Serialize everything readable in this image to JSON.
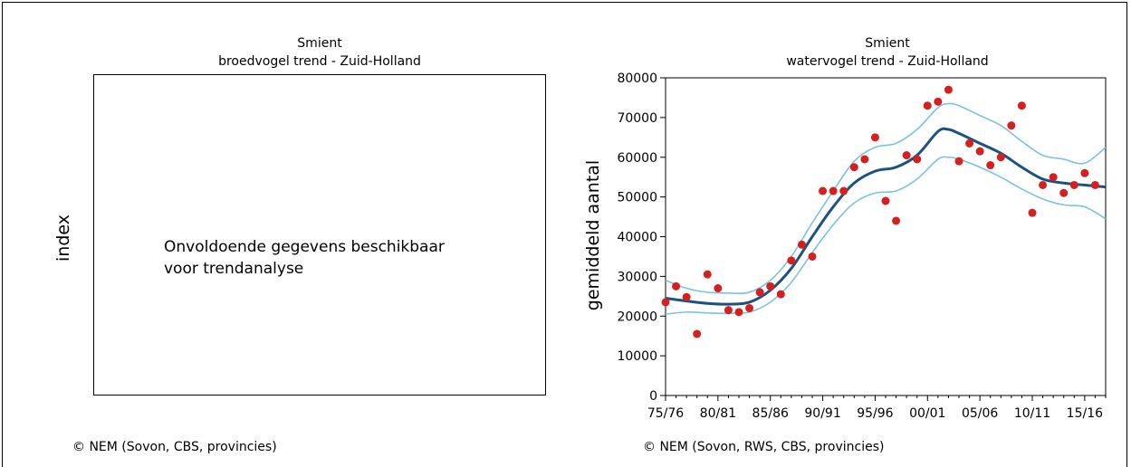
{
  "left_panel": {
    "title": "Smient",
    "subtitle": "broedvogel trend - Zuid-Holland",
    "ylabel": "index",
    "message_line1": "Onvoldoende gegevens beschikbaar",
    "message_line2": "voor trendanalyse",
    "credit": "© NEM (Sovon, CBS, provincies)"
  },
  "right_panel": {
    "credit": "© NEM (Sovon, RWS, CBS, provincies)"
  },
  "chart_data": {
    "type": "scatter",
    "title": "Smient",
    "subtitle": "watervogel trend - Zuid-Holland",
    "ylabel": "gemiddeld aantal",
    "xlabel": "",
    "ylim": [
      0,
      80000
    ],
    "yticks": [
      0,
      10000,
      20000,
      30000,
      40000,
      50000,
      60000,
      70000,
      80000
    ],
    "xlim": [
      1975,
      2017
    ],
    "xticks": [
      {
        "x": 1975,
        "label": "75/76"
      },
      {
        "x": 1980,
        "label": "80/81"
      },
      {
        "x": 1985,
        "label": "85/86"
      },
      {
        "x": 1990,
        "label": "90/91"
      },
      {
        "x": 1995,
        "label": "95/96"
      },
      {
        "x": 2000,
        "label": "00/01"
      },
      {
        "x": 2005,
        "label": "05/06"
      },
      {
        "x": 2010,
        "label": "10/11"
      },
      {
        "x": 2015,
        "label": "15/16"
      }
    ],
    "points": {
      "x": [
        1975,
        1976,
        1977,
        1978,
        1979,
        1980,
        1981,
        1982,
        1983,
        1984,
        1985,
        1986,
        1987,
        1988,
        1989,
        1990,
        1991,
        1992,
        1993,
        1994,
        1995,
        1996,
        1997,
        1998,
        1999,
        2000,
        2001,
        2002,
        2003,
        2004,
        2005,
        2006,
        2007,
        2008,
        2009,
        2010,
        2011,
        2012,
        2013,
        2014,
        2015,
        2016
      ],
      "y": [
        23500,
        27500,
        24800,
        15500,
        30500,
        27000,
        21500,
        21000,
        22000,
        26000,
        27500,
        25500,
        34000,
        38000,
        35000,
        51500,
        51500,
        51500,
        57500,
        59500,
        65000,
        49000,
        44000,
        60500,
        59500,
        73000,
        74000,
        77000,
        59000,
        63500,
        61500,
        58000,
        60000,
        68000,
        73000,
        46000,
        53000,
        55000,
        51000,
        53000,
        56000,
        53000
      ],
      "color": "#d42020"
    },
    "trend": {
      "x": [
        1975,
        1977,
        1979,
        1981,
        1983,
        1985,
        1987,
        1989,
        1991,
        1993,
        1995,
        1997,
        1999,
        2001,
        2002,
        2003,
        2005,
        2007,
        2009,
        2011,
        2013,
        2015,
        2017
      ],
      "y": [
        24500,
        23800,
        23200,
        23000,
        23500,
        26500,
        32000,
        40000,
        47500,
        53500,
        56500,
        57500,
        60500,
        66500,
        67000,
        66000,
        63500,
        61000,
        57500,
        54500,
        53500,
        53000,
        52500
      ],
      "color": "#1d5180"
    },
    "upper_band": {
      "x": [
        1975,
        1977,
        1979,
        1981,
        1983,
        1985,
        1987,
        1989,
        1991,
        1993,
        1995,
        1997,
        1999,
        2001,
        2002,
        2003,
        2005,
        2007,
        2009,
        2011,
        2013,
        2015,
        2017
      ],
      "y": [
        29000,
        27000,
        26000,
        25800,
        26000,
        29000,
        35000,
        43500,
        51500,
        59000,
        62500,
        63500,
        67000,
        72500,
        73500,
        73000,
        70500,
        68000,
        64000,
        60500,
        59500,
        58500,
        62500
      ],
      "color": "#7ac2e0"
    },
    "lower_band": {
      "x": [
        1975,
        1977,
        1979,
        1981,
        1983,
        1985,
        1987,
        1989,
        1991,
        1993,
        1995,
        1997,
        1999,
        2001,
        2002,
        2003,
        2005,
        2007,
        2009,
        2011,
        2013,
        2015,
        2017
      ],
      "y": [
        20500,
        21000,
        20800,
        20700,
        21000,
        23500,
        28500,
        36000,
        43000,
        48500,
        51000,
        51500,
        54500,
        59500,
        60000,
        59500,
        57500,
        55000,
        52000,
        49500,
        48000,
        47500,
        44500
      ],
      "color": "#7ac2e0"
    },
    "grid": false,
    "legend": "none"
  }
}
